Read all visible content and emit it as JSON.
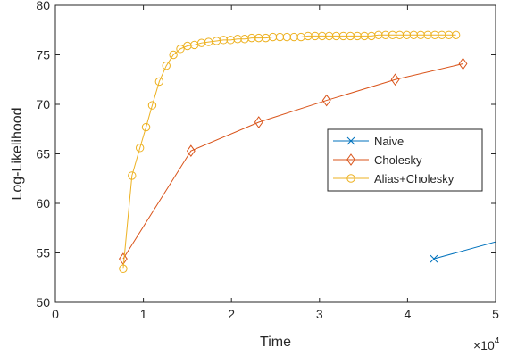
{
  "chart_data": {
    "type": "line",
    "xlabel": "Time",
    "ylabel": "Log-Likelihood",
    "x_multiplier_label": "×10",
    "x_multiplier_exp": "4",
    "xlim": [
      0,
      50000
    ],
    "ylim": [
      50,
      80
    ],
    "x_ticks": [
      0,
      10000,
      20000,
      30000,
      40000,
      50000
    ],
    "x_tick_labels": [
      "0",
      "1",
      "2",
      "3",
      "4",
      "5"
    ],
    "y_ticks": [
      50,
      55,
      60,
      65,
      70,
      75,
      80
    ],
    "y_tick_labels": [
      "50",
      "55",
      "60",
      "65",
      "70",
      "75",
      "80"
    ],
    "grid": false,
    "legend_position": "center-right",
    "series": [
      {
        "name": "Naive",
        "color": "#0072BD",
        "marker": "x",
        "x": [
          43000,
          52000
        ],
        "y": [
          54.4,
          56.6
        ]
      },
      {
        "name": "Cholesky",
        "color": "#D95319",
        "marker": "diamond",
        "x": [
          7700,
          15400,
          23100,
          30800,
          38600,
          46300
        ],
        "y": [
          54.4,
          65.3,
          68.2,
          70.4,
          72.5,
          74.1
        ]
      },
      {
        "name": "Alias+Cholesky",
        "color": "#EDB120",
        "marker": "circle",
        "x": [
          7700,
          8700,
          9600,
          10300,
          11000,
          11800,
          12600,
          13400,
          14200,
          15000,
          15800,
          16600,
          17400,
          18300,
          19100,
          19900,
          20700,
          21500,
          22300,
          23100,
          23900,
          24700,
          25500,
          26300,
          27100,
          27900,
          28700,
          29500,
          30300,
          31100,
          31900,
          32700,
          33500,
          34300,
          35100,
          35900,
          36700,
          37500,
          38300,
          39100,
          39900,
          40700,
          41500,
          42300,
          43100,
          43900,
          44700,
          45500
        ],
        "y": [
          53.4,
          62.8,
          65.6,
          67.7,
          69.9,
          72.3,
          73.9,
          75.0,
          75.6,
          75.9,
          76.0,
          76.2,
          76.3,
          76.4,
          76.5,
          76.5,
          76.6,
          76.6,
          76.7,
          76.7,
          76.7,
          76.8,
          76.8,
          76.8,
          76.8,
          76.8,
          76.9,
          76.9,
          76.9,
          76.9,
          76.9,
          76.9,
          76.9,
          76.9,
          76.9,
          76.9,
          77.0,
          77.0,
          77.0,
          77.0,
          77.0,
          77.0,
          77.0,
          77.0,
          77.0,
          77.0,
          77.0,
          77.0
        ]
      }
    ]
  }
}
